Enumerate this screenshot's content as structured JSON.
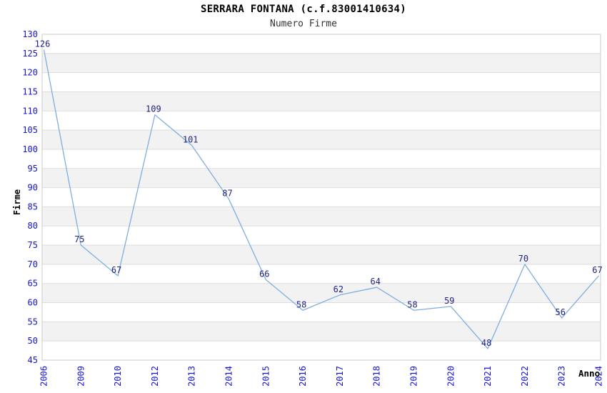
{
  "header": {
    "title": "SERRARA FONTANA (c.f.83001410634)",
    "subtitle": "Numero Firme"
  },
  "chart_data": {
    "type": "line",
    "title": "SERRARA FONTANA (c.f.83001410634)",
    "subtitle": "Numero Firme",
    "xlabel": "Anno",
    "ylabel": "Firme",
    "categories": [
      "2006",
      "2009",
      "2010",
      "2012",
      "2013",
      "2014",
      "2015",
      "2016",
      "2017",
      "2018",
      "2019",
      "2020",
      "2021",
      "2022",
      "2023",
      "2024"
    ],
    "values": [
      126,
      75,
      67,
      109,
      101,
      87,
      66,
      58,
      62,
      64,
      58,
      59,
      48,
      70,
      56,
      67
    ],
    "ylim": [
      45,
      130
    ],
    "y_tick_step": 5,
    "grid": true,
    "banded_background": true,
    "show_data_labels": true,
    "legend_position": "none",
    "colors": {
      "line": "#7dafe0",
      "tick_label": "#1414dc",
      "data_label": "#232382",
      "band": "#f2f2f2",
      "gridline": "#dddddd",
      "plot_border": "#cccccc",
      "axis_line": "#c8c8c8",
      "background": "#ffffff"
    }
  }
}
